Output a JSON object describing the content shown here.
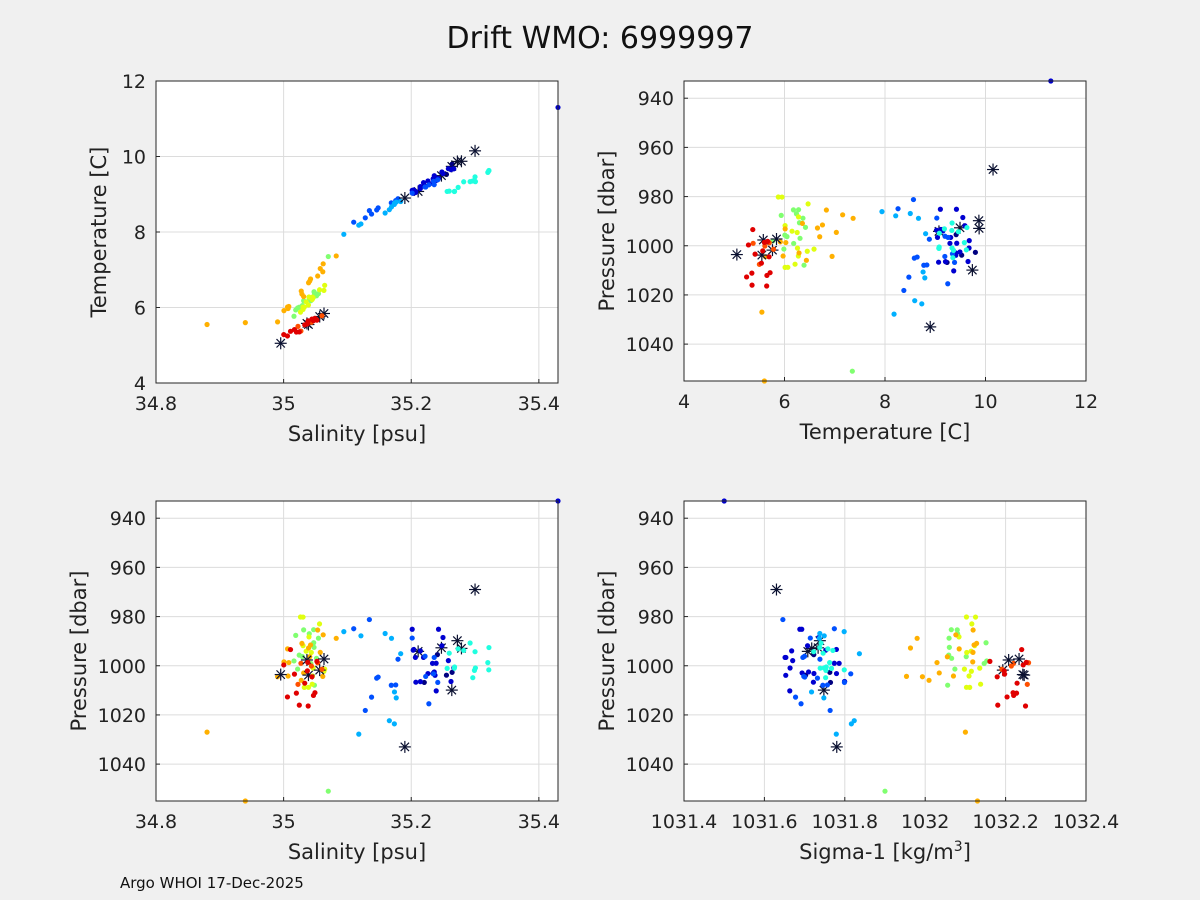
{
  "figure": {
    "title": "Drift WMO: 6999997",
    "footer": "Argo WHOI 17-Dec-2025"
  },
  "colors": {
    "colormap": [
      "#000080",
      "#0000d0",
      "#0050ff",
      "#00b0ff",
      "#20ffe0",
      "#80ff70",
      "#e0ff10",
      "#ffb000",
      "#ff5000",
      "#e00000"
    ],
    "star": "#0a1030",
    "grid": "#dcdcdc",
    "axes_bg": "#ffffff"
  },
  "chart_data": [
    {
      "id": "ts",
      "type": "scatter",
      "xlabel": "Salinity [psu]",
      "ylabel": "Temperature [C]",
      "xlim": [
        34.8,
        35.43
      ],
      "ylim": [
        4,
        12
      ],
      "xticks": [
        {
          "v": 34.8,
          "label": "34.8"
        },
        {
          "v": 35,
          "label": "35"
        },
        {
          "v": 35.2,
          "label": "35.2"
        },
        {
          "v": 35.4,
          "label": "35.4"
        }
      ],
      "yticks": [
        {
          "v": 4,
          "label": "4"
        },
        {
          "v": 6,
          "label": "6"
        },
        {
          "v": 8,
          "label": "8"
        },
        {
          "v": 10,
          "label": "10"
        },
        {
          "v": 12,
          "label": "12"
        }
      ]
    },
    {
      "id": "tp",
      "type": "scatter",
      "xlabel": "Temperature [C]",
      "ylabel": "Pressure [dbar]",
      "xlim": [
        4,
        12
      ],
      "ylim": [
        933,
        1055
      ],
      "yreverse": true,
      "xticks": [
        {
          "v": 4,
          "label": "4"
        },
        {
          "v": 6,
          "label": "6"
        },
        {
          "v": 8,
          "label": "8"
        },
        {
          "v": 10,
          "label": "10"
        },
        {
          "v": 12,
          "label": "12"
        }
      ],
      "yticks": [
        {
          "v": 940,
          "label": "940"
        },
        {
          "v": 960,
          "label": "960"
        },
        {
          "v": 980,
          "label": "980"
        },
        {
          "v": 1000,
          "label": "1000"
        },
        {
          "v": 1020,
          "label": "1020"
        },
        {
          "v": 1040,
          "label": "1040"
        }
      ]
    },
    {
      "id": "sp",
      "type": "scatter",
      "xlabel": "Salinity [psu]",
      "ylabel": "Pressure [dbar]",
      "xlim": [
        34.8,
        35.43
      ],
      "ylim": [
        933,
        1055
      ],
      "yreverse": true,
      "xticks": [
        {
          "v": 34.8,
          "label": "34.8"
        },
        {
          "v": 35,
          "label": "35"
        },
        {
          "v": 35.2,
          "label": "35.2"
        },
        {
          "v": 35.4,
          "label": "35.4"
        }
      ],
      "yticks": [
        {
          "v": 940,
          "label": "940"
        },
        {
          "v": 960,
          "label": "960"
        },
        {
          "v": 980,
          "label": "980"
        },
        {
          "v": 1000,
          "label": "1000"
        },
        {
          "v": 1020,
          "label": "1020"
        },
        {
          "v": 1040,
          "label": "1040"
        }
      ]
    },
    {
      "id": "dp",
      "type": "scatter",
      "xlabel": "Sigma-1 [kg/m",
      "xlabel_sup": "3",
      "xlabel_end": "]",
      "ylabel": "Pressure [dbar]",
      "xlim": [
        1031.4,
        1032.4
      ],
      "ylim": [
        933,
        1055
      ],
      "yreverse": true,
      "xticks": [
        {
          "v": 1031.4,
          "label": "1031.4"
        },
        {
          "v": 1031.6,
          "label": "1031.6"
        },
        {
          "v": 1031.8,
          "label": "1031.8"
        },
        {
          "v": 1032,
          "label": "1032"
        },
        {
          "v": 1032.2,
          "label": "1032.2"
        },
        {
          "v": 1032.4,
          "label": "1032.4"
        }
      ],
      "yticks": [
        {
          "v": 940,
          "label": "940"
        },
        {
          "v": 960,
          "label": "960"
        },
        {
          "v": 980,
          "label": "980"
        },
        {
          "v": 1000,
          "label": "1000"
        },
        {
          "v": 1020,
          "label": "1020"
        },
        {
          "v": 1040,
          "label": "1040"
        }
      ]
    }
  ],
  "clusters": [
    {
      "c": 0,
      "n": 9,
      "star": true,
      "s": [
        35.2,
        35.3
      ],
      "t": [
        8.9,
        10.15
      ],
      "p": [
        985,
        1010
      ],
      "d": [
        1031.68,
        1031.78
      ]
    },
    {
      "c": 1,
      "n": 22,
      "star": false,
      "s": [
        35.18,
        35.28
      ],
      "t": [
        8.8,
        9.9
      ],
      "p": [
        985,
        1012
      ],
      "d": [
        1031.65,
        1031.8
      ]
    },
    {
      "c": 2,
      "n": 16,
      "star": false,
      "s": [
        35.1,
        35.24
      ],
      "t": [
        8.2,
        9.4
      ],
      "p": [
        980,
        1020
      ],
      "d": [
        1031.62,
        1031.82
      ]
    },
    {
      "c": 3,
      "n": 10,
      "star": false,
      "s": [
        35.08,
        35.2
      ],
      "t": [
        7.8,
        9.0
      ],
      "p": [
        985,
        1030
      ],
      "d": [
        1031.7,
        1031.85
      ]
    },
    {
      "c": 4,
      "n": 14,
      "star": false,
      "s": [
        35.26,
        35.32
      ],
      "t": [
        9.0,
        9.6
      ],
      "p": [
        985,
        1005
      ],
      "d": [
        1031.72,
        1031.8
      ]
    },
    {
      "c": 5,
      "n": 14,
      "star": false,
      "s": [
        35.01,
        35.06
      ],
      "t": [
        5.8,
        6.5
      ],
      "p": [
        985,
        1010
      ],
      "d": [
        1032.05,
        1032.16
      ]
    },
    {
      "c": 6,
      "n": 14,
      "star": false,
      "s": [
        35.02,
        35.07
      ],
      "t": [
        5.9,
        6.6
      ],
      "p": [
        980,
        1010
      ],
      "d": [
        1032.08,
        1032.14
      ]
    },
    {
      "c": 7,
      "n": 16,
      "star": false,
      "s": [
        34.99,
        35.08
      ],
      "t": [
        5.6,
        7.4
      ],
      "p": [
        985,
        1008
      ],
      "d": [
        1031.95,
        1032.14
      ]
    },
    {
      "c": 8,
      "n": 10,
      "star": true,
      "s": [
        34.99,
        35.06
      ],
      "t": [
        5.1,
        5.8
      ],
      "p": [
        995,
        1008
      ],
      "d": [
        1032.18,
        1032.26
      ]
    },
    {
      "c": 9,
      "n": 14,
      "star": false,
      "s": [
        35.0,
        35.05
      ],
      "t": [
        5.2,
        5.7
      ],
      "p": [
        992,
        1018
      ],
      "d": [
        1032.15,
        1032.28
      ]
    }
  ]
}
